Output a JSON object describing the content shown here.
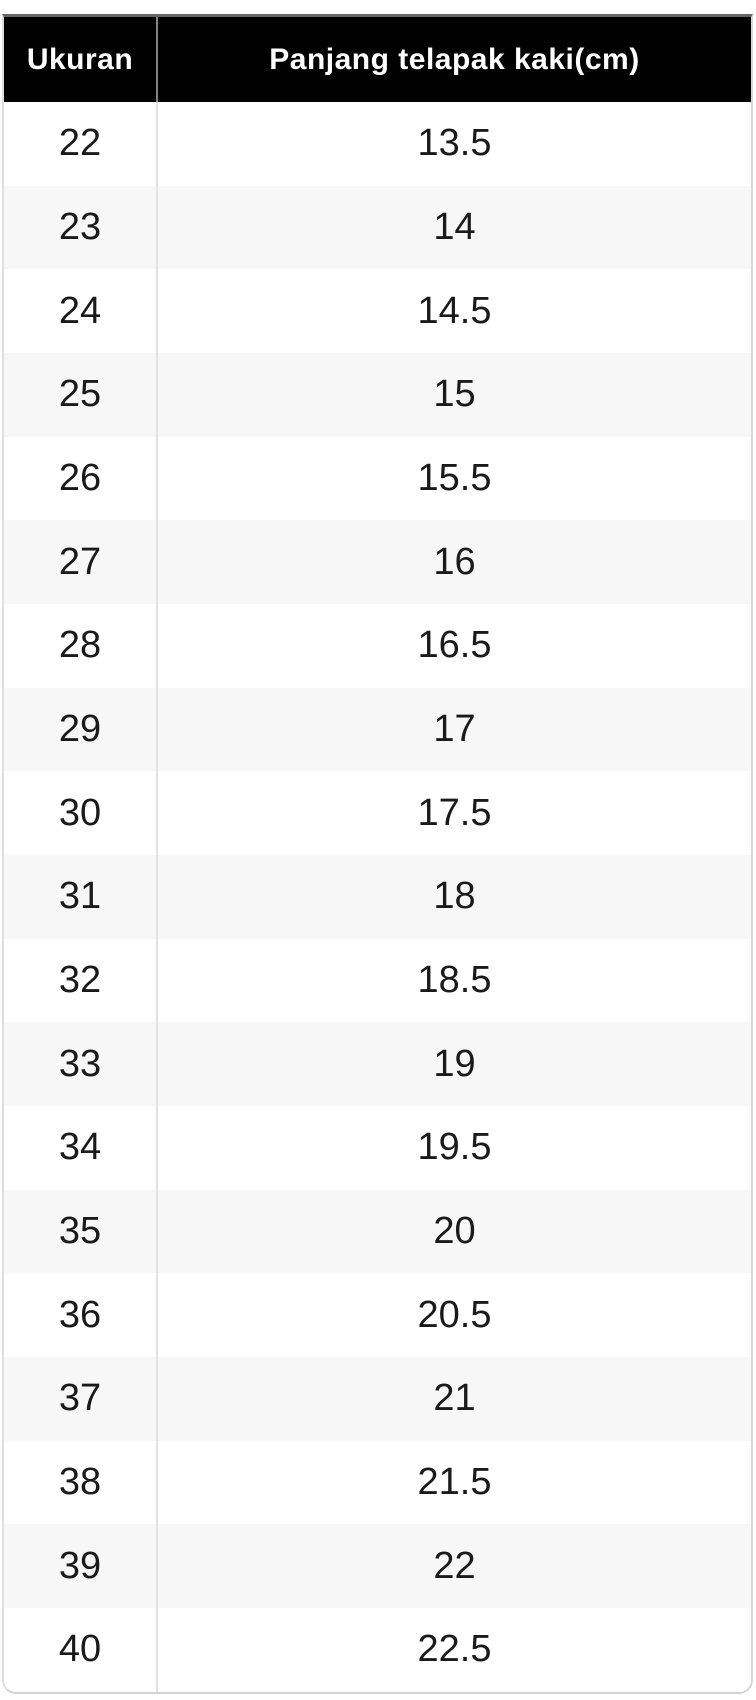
{
  "table": {
    "columns": [
      {
        "label": "Ukuran"
      },
      {
        "label": "Panjang telapak kaki(cm)"
      }
    ],
    "rows": [
      {
        "size": "22",
        "length": "13.5"
      },
      {
        "size": "23",
        "length": "14"
      },
      {
        "size": "24",
        "length": "14.5"
      },
      {
        "size": "25",
        "length": "15"
      },
      {
        "size": "26",
        "length": "15.5"
      },
      {
        "size": "27",
        "length": "16"
      },
      {
        "size": "28",
        "length": "16.5"
      },
      {
        "size": "29",
        "length": "17"
      },
      {
        "size": "30",
        "length": "17.5"
      },
      {
        "size": "31",
        "length": "18"
      },
      {
        "size": "32",
        "length": "18.5"
      },
      {
        "size": "33",
        "length": "19"
      },
      {
        "size": "34",
        "length": "19.5"
      },
      {
        "size": "35",
        "length": "20"
      },
      {
        "size": "36",
        "length": "20.5"
      },
      {
        "size": "37",
        "length": "21"
      },
      {
        "size": "38",
        "length": "21.5"
      },
      {
        "size": "39",
        "length": "22"
      },
      {
        "size": "40",
        "length": "22.5"
      }
    ]
  },
  "chart_data": {
    "type": "table",
    "columns": [
      "Ukuran",
      "Panjang telapak kaki(cm)"
    ],
    "rows": [
      [
        22,
        13.5
      ],
      [
        23,
        14
      ],
      [
        24,
        14.5
      ],
      [
        25,
        15
      ],
      [
        26,
        15.5
      ],
      [
        27,
        16
      ],
      [
        28,
        16.5
      ],
      [
        29,
        17
      ],
      [
        30,
        17.5
      ],
      [
        31,
        18
      ],
      [
        32,
        18.5
      ],
      [
        33,
        19
      ],
      [
        34,
        19.5
      ],
      [
        35,
        20
      ],
      [
        36,
        20.5
      ],
      [
        37,
        21
      ],
      [
        38,
        21.5
      ],
      [
        39,
        22
      ],
      [
        40,
        22.5
      ]
    ],
    "layout_hints": {
      "header_position": "top",
      "zebra_striping": true,
      "all_cells_centered": true
    }
  },
  "colors": {
    "header_bg": "#000000",
    "header_text": "#ffffff",
    "top_border": "#666666",
    "outer_border": "#d6d6d6",
    "body_divider": "#e2e2e2",
    "header_divider": "#848484",
    "row_alt_bg": "#f7f7f7",
    "body_text": "#1a1a1a"
  }
}
